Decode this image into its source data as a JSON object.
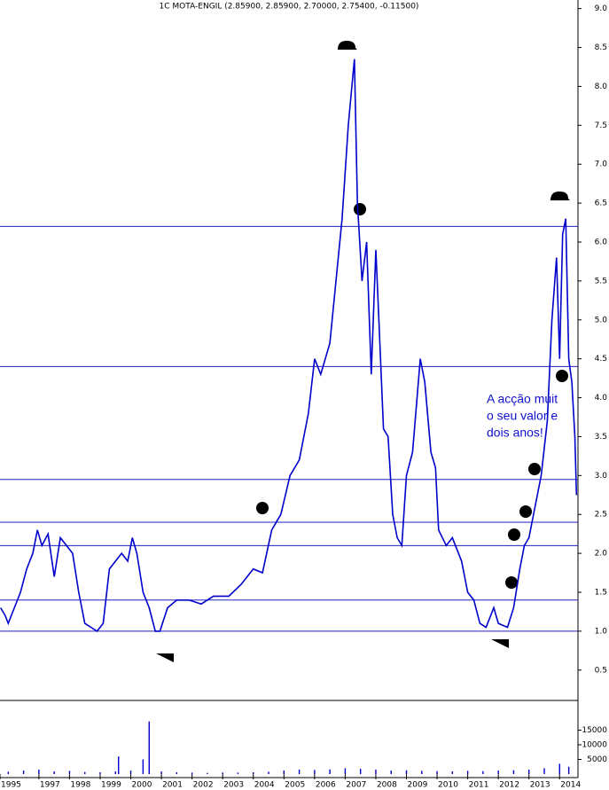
{
  "chart_data": [
    {
      "type": "line",
      "title": "1C MOTA-ENGIL (2.85900, 2.85900, 2.70000, 2.75400, -0.11500)",
      "color": "#0000cc",
      "x": [
        1995.75,
        1995.9,
        1996.0,
        1996.2,
        1996.4,
        1996.6,
        1996.8,
        1996.95,
        1997.1,
        1997.3,
        1997.5,
        1997.7,
        1997.9,
        1998.1,
        1998.3,
        1998.5,
        1998.7,
        1998.9,
        1999.1,
        1999.3,
        1999.5,
        1999.7,
        1999.9,
        2000.05,
        2000.2,
        2000.4,
        2000.6,
        2000.8,
        2000.95,
        2001.2,
        2001.5,
        2001.9,
        2002.3,
        2002.7,
        2003.2,
        2003.6,
        2004.0,
        2004.3,
        2004.6,
        2004.9,
        2005.2,
        2005.5,
        2005.8,
        2006.0,
        2006.2,
        2006.5,
        2006.7,
        2006.9,
        2007.1,
        2007.3,
        2007.4,
        2007.55,
        2007.7,
        2007.85,
        2008.0,
        2008.1,
        2008.25,
        2008.4,
        2008.55,
        2008.7,
        2008.85,
        2009.0,
        2009.2,
        2009.45,
        2009.6,
        2009.8,
        2009.95,
        2010.05,
        2010.3,
        2010.5,
        2010.8,
        2011.0,
        2011.2,
        2011.4,
        2011.6,
        2011.85,
        2012.0,
        2012.3,
        2012.5,
        2012.7,
        2012.85,
        2013.0,
        2013.2,
        2013.4,
        2013.6,
        2013.75,
        2013.9,
        2014.0,
        2014.1,
        2014.2,
        2014.3,
        2014.4,
        2014.5,
        2014.55
      ],
      "values": [
        1.3,
        1.2,
        1.1,
        1.3,
        1.5,
        1.8,
        2.0,
        2.3,
        2.1,
        2.25,
        1.7,
        2.2,
        2.1,
        2.0,
        1.5,
        1.1,
        1.05,
        1.0,
        1.1,
        1.8,
        1.9,
        2.0,
        1.9,
        2.2,
        2.0,
        1.5,
        1.3,
        1.0,
        1.0,
        1.3,
        1.4,
        1.4,
        1.35,
        1.45,
        1.45,
        1.6,
        1.8,
        1.75,
        2.3,
        2.5,
        3.0,
        3.2,
        3.8,
        4.5,
        4.3,
        4.7,
        5.5,
        6.3,
        7.5,
        8.35,
        6.5,
        5.5,
        6.0,
        4.3,
        5.9,
        5.0,
        3.6,
        3.5,
        2.5,
        2.2,
        2.1,
        3.0,
        3.3,
        4.5,
        4.2,
        3.3,
        3.1,
        2.3,
        2.1,
        2.2,
        1.9,
        1.5,
        1.4,
        1.1,
        1.05,
        1.3,
        1.1,
        1.05,
        1.3,
        1.8,
        2.1,
        2.2,
        2.6,
        3.0,
        3.7,
        5.0,
        5.8,
        4.5,
        6.1,
        6.3,
        4.5,
        4.2,
        3.5,
        2.75
      ],
      "xlim": [
        1995.73,
        2014.6
      ],
      "ylim": [
        0.11,
        9.11
      ],
      "yticks": [
        {
          "value": 0.5,
          "label": "0.5"
        },
        {
          "value": 1,
          "label": "1.0"
        },
        {
          "value": 1.5,
          "label": "1.5"
        },
        {
          "value": 2,
          "label": "2.0"
        },
        {
          "value": 2.5,
          "label": "2.5"
        },
        {
          "value": 3,
          "label": "3.0"
        },
        {
          "value": 3.5,
          "label": "3.5"
        },
        {
          "value": 4,
          "label": "4.0"
        },
        {
          "value": 4.5,
          "label": "4.5"
        },
        {
          "value": 5,
          "label": "5.0"
        },
        {
          "value": 5.5,
          "label": "5.5"
        },
        {
          "value": 6,
          "label": "6.0"
        },
        {
          "value": 6.5,
          "label": "6.5"
        },
        {
          "value": 7,
          "label": "7.0"
        },
        {
          "value": 7.5,
          "label": "7.5"
        },
        {
          "value": 8,
          "label": "8.0"
        },
        {
          "value": 8.5,
          "label": "8.5"
        },
        {
          "value": 9,
          "label": "9.0"
        }
      ],
      "reference_lines": [
        6.2,
        4.4,
        2.95,
        2.4,
        2.1,
        1.4,
        1.0
      ],
      "annotation": [
        "A acção muit",
        "o seu valor e",
        "dois anos!"
      ]
    },
    {
      "type": "bar",
      "color": "#0000cc",
      "x": [
        1996.0,
        1996.5,
        1997.0,
        1997.5,
        1998.0,
        1998.5,
        1999.0,
        1999.5,
        1999.6,
        2000.0,
        2000.4,
        2000.6,
        2001.0,
        2001.5,
        2002.0,
        2002.5,
        2003.0,
        2003.5,
        2004.0,
        2004.5,
        2005.0,
        2005.5,
        2006.0,
        2006.5,
        2007.0,
        2007.5,
        2008.0,
        2008.5,
        2009.0,
        2009.5,
        2010.0,
        2010.5,
        2011.0,
        2011.5,
        2012.0,
        2012.5,
        2013.0,
        2013.5,
        2014.0,
        2014.3
      ],
      "values": [
        800,
        1200,
        1500,
        900,
        1100,
        700,
        600,
        900,
        6000,
        1200,
        5000,
        18000,
        900,
        600,
        500,
        400,
        500,
        500,
        600,
        800,
        1200,
        1500,
        1400,
        1600,
        2000,
        1800,
        1500,
        1200,
        1300,
        1100,
        1000,
        900,
        1100,
        1000,
        1200,
        1300,
        1500,
        2000,
        3500,
        2500
      ],
      "xlim": [
        1995.73,
        2014.6
      ],
      "ylim": [
        0,
        25150
      ],
      "yticks": [
        5000,
        10000,
        15000
      ],
      "xticks": [
        {
          "value": 1995.73,
          "label": "1995"
        },
        1997,
        1998,
        1999,
        2000,
        2001,
        2002,
        2003,
        2004,
        2005,
        2006,
        2007,
        2008,
        2009,
        2010,
        2011,
        2012,
        2013,
        2014
      ]
    }
  ]
}
